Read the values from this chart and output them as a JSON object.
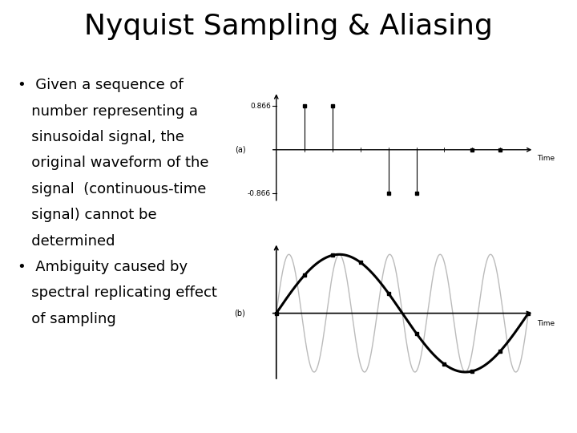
{
  "title": "Nyquist Sampling & Aliasing",
  "title_fontsize": 26,
  "bg_color": "#ffffff",
  "bullet1_line1": "•  Given a sequence of",
  "bullet1_line2": "   number representing a",
  "bullet1_line3": "   sinusoidal signal, the",
  "bullet1_line4": "   original waveform of the",
  "bullet1_line5": "   signal  (continuous-time",
  "bullet1_line6": "   signal) cannot be",
  "bullet1_line7": "   determined",
  "bullet2_line1": "•  Ambiguity caused by",
  "bullet2_line2": "   spectral replicating effect",
  "bullet2_line3": "   of sampling",
  "bullet_fontsize": 13,
  "plot_a_label": "(a)",
  "plot_b_label": "(b)",
  "time_label": "Time",
  "ytick_a_pos": "0.866",
  "ytick_a_neg": "-0.866",
  "gray_color": "#bbbbbb",
  "black_color": "#000000",
  "stem_color": "#000000"
}
